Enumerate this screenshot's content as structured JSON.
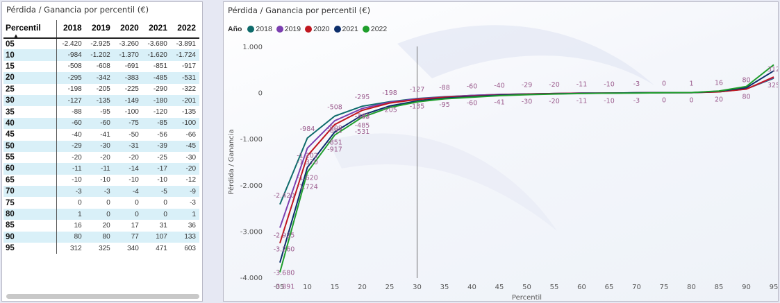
{
  "table": {
    "title": "Pérdida / Ganancia por percentil (€)",
    "header_first": "Percentil",
    "years": [
      "2018",
      "2019",
      "2020",
      "2021",
      "2022"
    ],
    "rows": [
      {
        "p": "05",
        "v": [
          "-2.420",
          "-2.925",
          "-3.260",
          "-3.680",
          "-3.891"
        ]
      },
      {
        "p": "10",
        "v": [
          "-984",
          "-1.202",
          "-1.370",
          "-1.620",
          "-1.724"
        ]
      },
      {
        "p": "15",
        "v": [
          "-508",
          "-608",
          "-691",
          "-851",
          "-917"
        ]
      },
      {
        "p": "20",
        "v": [
          "-295",
          "-342",
          "-383",
          "-485",
          "-531"
        ]
      },
      {
        "p": "25",
        "v": [
          "-198",
          "-205",
          "-225",
          "-290",
          "-322"
        ]
      },
      {
        "p": "30",
        "v": [
          "-127",
          "-135",
          "-149",
          "-180",
          "-201"
        ]
      },
      {
        "p": "35",
        "v": [
          "-88",
          "-95",
          "-100",
          "-120",
          "-135"
        ]
      },
      {
        "p": "40",
        "v": [
          "-60",
          "-60",
          "-75",
          "-85",
          "-100"
        ]
      },
      {
        "p": "45",
        "v": [
          "-40",
          "-41",
          "-50",
          "-56",
          "-66"
        ]
      },
      {
        "p": "50",
        "v": [
          "-29",
          "-30",
          "-31",
          "-39",
          "-45"
        ]
      },
      {
        "p": "55",
        "v": [
          "-20",
          "-20",
          "-20",
          "-25",
          "-30"
        ]
      },
      {
        "p": "60",
        "v": [
          "-11",
          "-11",
          "-14",
          "-17",
          "-20"
        ]
      },
      {
        "p": "65",
        "v": [
          "-10",
          "-10",
          "-10",
          "-10",
          "-12"
        ]
      },
      {
        "p": "70",
        "v": [
          "-3",
          "-3",
          "-4",
          "-5",
          "-9"
        ]
      },
      {
        "p": "75",
        "v": [
          "0",
          "0",
          "0",
          "0",
          "-3"
        ]
      },
      {
        "p": "80",
        "v": [
          "1",
          "0",
          "0",
          "0",
          "1"
        ]
      },
      {
        "p": "85",
        "v": [
          "16",
          "20",
          "17",
          "31",
          "36"
        ]
      },
      {
        "p": "90",
        "v": [
          "80",
          "80",
          "77",
          "107",
          "133"
        ]
      },
      {
        "p": "95",
        "v": [
          "312",
          "325",
          "340",
          "471",
          "603"
        ]
      }
    ]
  },
  "chart": {
    "title": "Pérdida / Ganancia por percentil (€)",
    "legend_title": "Año"
  },
  "colors": {
    "2018": "#0e6b6b",
    "2019": "#7b3fb0",
    "2020": "#c0171f",
    "2021": "#0c2e6b",
    "2022": "#1f9e2c",
    "label": "#9a5a8c",
    "row_alt": "#d9f0f8"
  },
  "chart_data": {
    "type": "line",
    "title": "Pérdida / Ganancia por percentil (€)",
    "xlabel": "Percentil",
    "ylabel": "Pérdida / Ganancia",
    "categories": [
      "05",
      "10",
      "15",
      "20",
      "25",
      "30",
      "35",
      "40",
      "45",
      "50",
      "55",
      "60",
      "65",
      "70",
      "75",
      "80",
      "85",
      "90",
      "95"
    ],
    "ylim": [
      -4000,
      1000
    ],
    "yticks": [
      1000,
      0,
      -1000,
      -2000,
      -3000,
      -4000
    ],
    "ytick_labels": [
      "1.000",
      "0",
      "-1.000",
      "-2.000",
      "-3.000",
      "-4.000"
    ],
    "reference_line_x": "30",
    "series": [
      {
        "name": "2018",
        "values": [
          -2420,
          -984,
          -508,
          -295,
          -198,
          -127,
          -88,
          -60,
          -40,
          -29,
          -20,
          -11,
          -10,
          -3,
          0,
          1,
          16,
          80,
          312
        ]
      },
      {
        "name": "2019",
        "values": [
          -2925,
          -1202,
          -608,
          -342,
          -205,
          -135,
          -95,
          -60,
          -41,
          -30,
          -20,
          -11,
          -10,
          -3,
          0,
          0,
          20,
          80,
          325
        ]
      },
      {
        "name": "2020",
        "values": [
          -3260,
          -1370,
          -691,
          -383,
          -225,
          -149,
          -100,
          -75,
          -50,
          -31,
          -20,
          -14,
          -10,
          -4,
          0,
          0,
          17,
          77,
          340
        ]
      },
      {
        "name": "2021",
        "values": [
          -3680,
          -1620,
          -851,
          -485,
          -290,
          -180,
          -120,
          -85,
          -56,
          -39,
          -25,
          -17,
          -10,
          -5,
          0,
          0,
          31,
          107,
          471
        ]
      },
      {
        "name": "2022",
        "values": [
          -3891,
          -1724,
          -917,
          -531,
          -322,
          -201,
          -135,
          -100,
          -66,
          -45,
          -30,
          -20,
          -12,
          -9,
          -3,
          1,
          36,
          133,
          603
        ]
      }
    ],
    "legend_position": "top-left",
    "grid": false
  }
}
